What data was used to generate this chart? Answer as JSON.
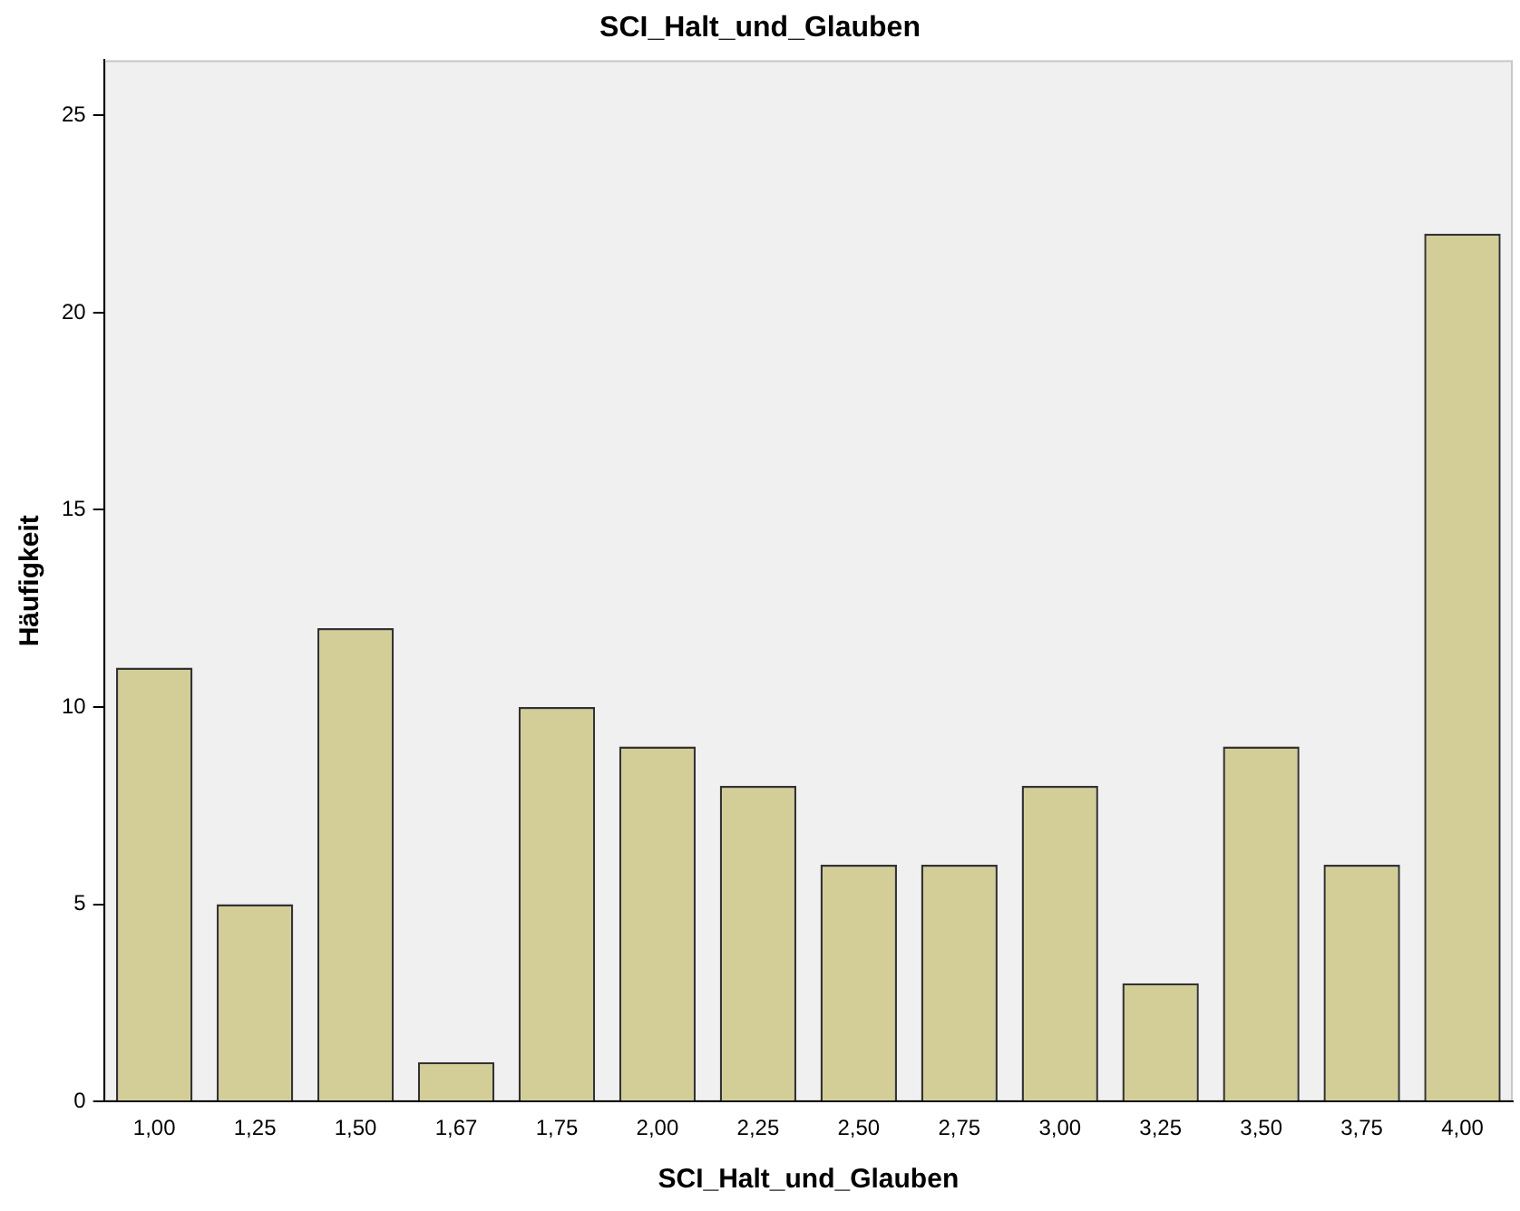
{
  "chart_data": {
    "type": "bar",
    "title": "SCI_Halt_und_Glauben",
    "xlabel": "SCI_Halt_und_Glauben",
    "ylabel": "Häufigkeit",
    "categories": [
      "1,00",
      "1,25",
      "1,50",
      "1,67",
      "1,75",
      "2,00",
      "2,25",
      "2,50",
      "2,75",
      "3,00",
      "3,25",
      "3,50",
      "3,75",
      "4,00"
    ],
    "values": [
      11,
      5,
      12,
      1,
      10,
      9,
      8,
      6,
      6,
      8,
      3,
      9,
      6,
      22
    ],
    "color": "#d3ce97",
    "ylim": [
      0,
      26.4
    ],
    "yticks": [
      0,
      5,
      10,
      15,
      20,
      25
    ]
  }
}
